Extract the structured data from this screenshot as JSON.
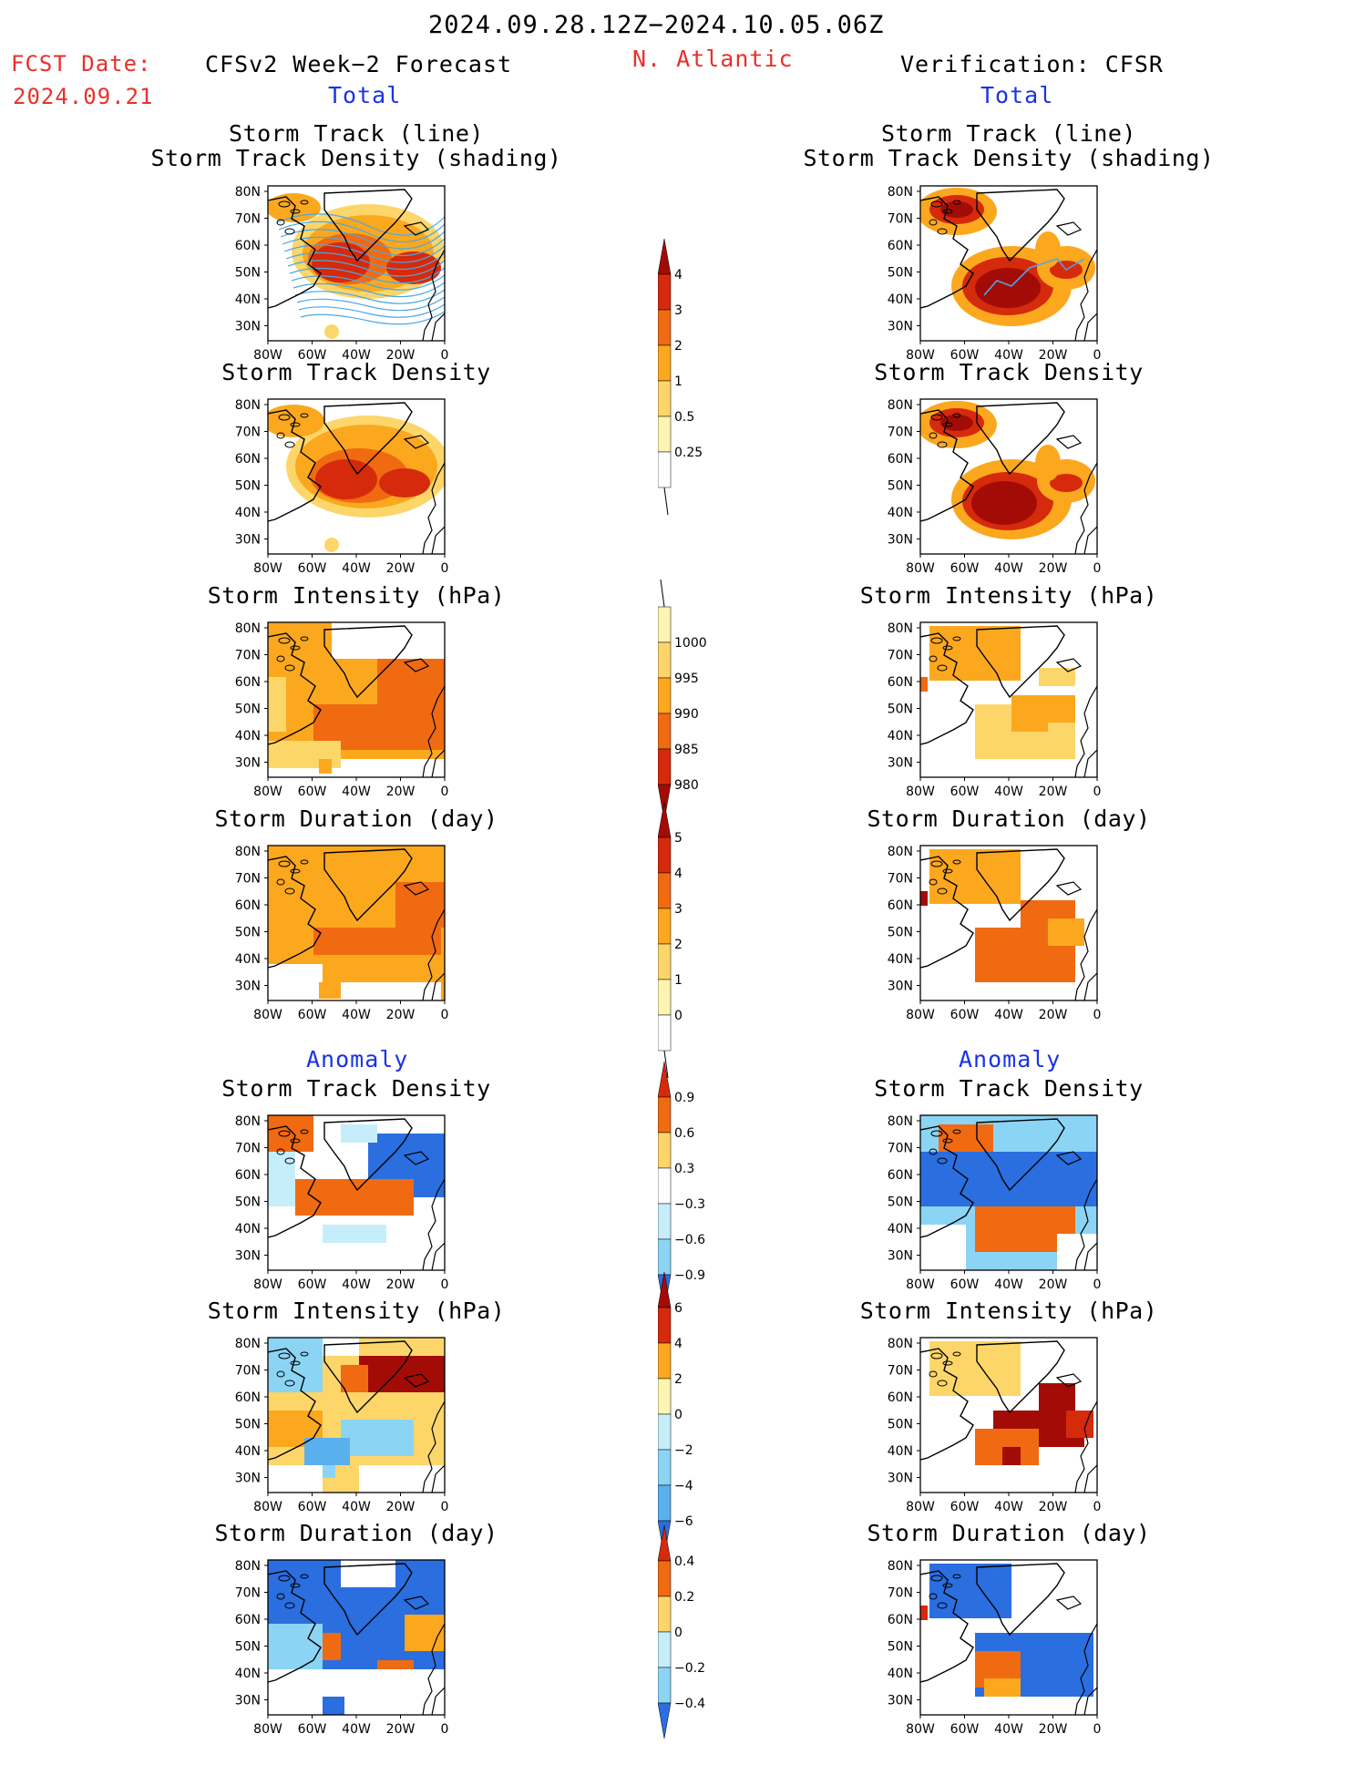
{
  "header": {
    "period": "2024.09.28.12Z−2024.10.05.06Z",
    "fcst_label": "FCST Date:",
    "fcst_date": "2024.09.21",
    "left_title": "CFSv2 Week−2 Forecast",
    "region": "N. Atlantic",
    "right_title": "Verification: CFSR",
    "total_left": "Total",
    "total_right": "Total",
    "anomaly_left": "Anomaly",
    "anomaly_right": "Anomaly"
  },
  "panel_titles": {
    "track1": "Storm Track (line)",
    "track2": "Storm Track Density (shading)",
    "density": "Storm Track Density",
    "intensity": "Storm Intensity (hPa)",
    "duration": "Storm Duration (day)"
  },
  "axes": {
    "lat_labels": [
      "80N",
      "70N",
      "60N",
      "50N",
      "40N",
      "30N"
    ],
    "lon_labels": [
      "80W",
      "60W",
      "40W",
      "20W",
      "0"
    ]
  },
  "colorbars": {
    "density_total": [
      "4",
      "3",
      "2",
      "1",
      "0.5",
      "0.25"
    ],
    "intensity_total": [
      "1000",
      "995",
      "990",
      "985",
      "980"
    ],
    "duration_total": [
      "5",
      "4",
      "3",
      "2",
      "1",
      "0"
    ],
    "density_anom": [
      "0.9",
      "0.6",
      "0.3",
      "−0.3",
      "−0.6",
      "−0.9"
    ],
    "intensity_anom": [
      "6",
      "4",
      "2",
      "0",
      "−2",
      "−4",
      "−6"
    ],
    "duration_anom": [
      "0.4",
      "0.2",
      "0",
      "−0.2",
      "−0.4"
    ]
  },
  "colors": {
    "red_title": "#e8302a",
    "blue_title": "#1a32e6",
    "track_line": "#4aa8e8",
    "warm": [
      "#fff4b0",
      "#fdd66a",
      "#fba81e",
      "#f06a12",
      "#d62a0c",
      "#a30c06"
    ],
    "cool": [
      "#c6eefa",
      "#8cd4f4",
      "#5ab0ec",
      "#2a6ee0",
      "#1948c8"
    ]
  }
}
